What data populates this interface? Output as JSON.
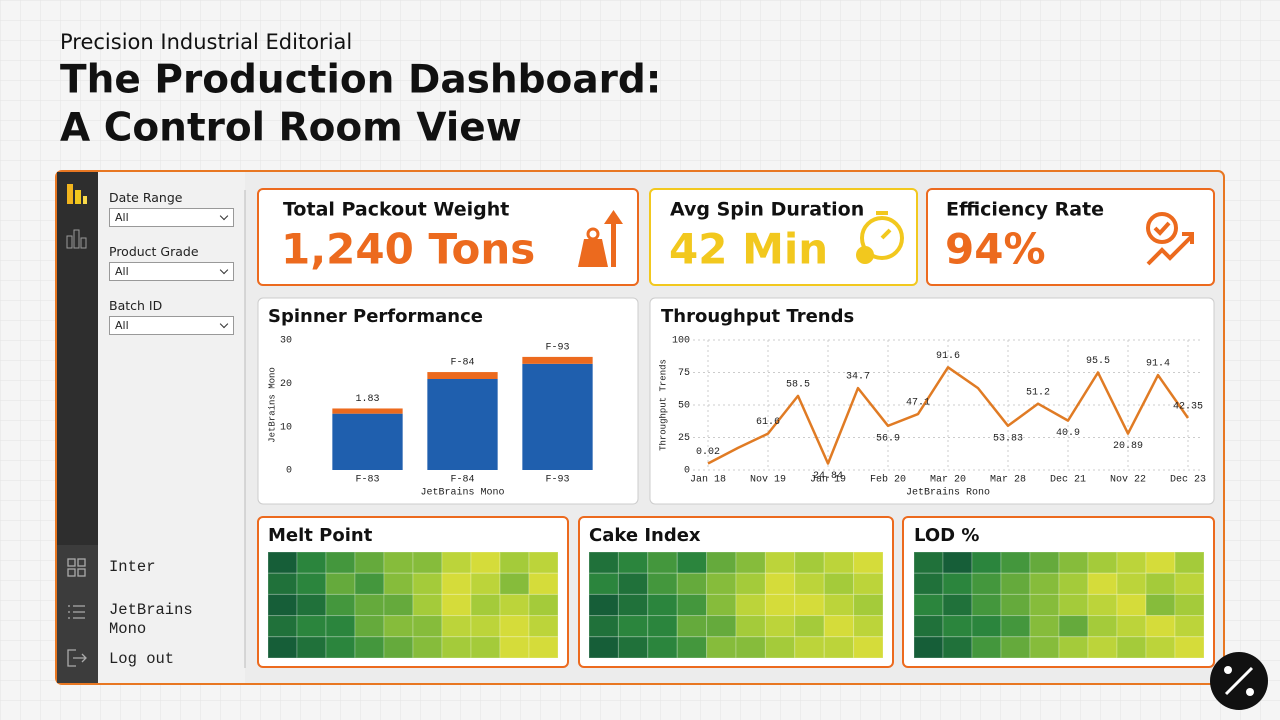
{
  "header": {
    "eyebrow": "Precision Industrial Editorial",
    "title": [
      "The Production Dashboard:",
      "A Control Room View"
    ]
  },
  "filters": [
    {
      "label": "Date Range",
      "value": "All"
    },
    {
      "label": "Product Grade",
      "value": "All"
    },
    {
      "label": "Batch ID",
      "value": "All"
    }
  ],
  "nav": [
    "Inter",
    "JetBrains Mono",
    "Log out"
  ],
  "kpis": [
    {
      "title": "Total Packout Weight",
      "value": "1,240 Tons",
      "color": "#ec6a1e"
    },
    {
      "title": "Avg Spin Duration",
      "value": "42 Min",
      "color": "#f2c81e"
    },
    {
      "title": "Efficiency Rate",
      "value": "94%",
      "color": "#ec6a1e"
    }
  ],
  "chart_data": [
    {
      "type": "bar",
      "title": "Spinner Performance",
      "stacked": true,
      "categories": [
        "F-83",
        "F-84",
        "F-93"
      ],
      "series": [
        {
          "color": "#1f5fae",
          "values": [
            13,
            21,
            24.5
          ]
        },
        {
          "color": "#ec6a1e",
          "values": [
            1.2,
            1.6,
            1.6
          ]
        }
      ],
      "annotations": [
        "1.83",
        "F-84",
        "F-93"
      ],
      "ylim": [
        0,
        30
      ],
      "yticks": [
        0,
        10,
        20,
        30
      ],
      "ylabel": "JetBrains Mono",
      "xlabel": "JetBrains Mono"
    },
    {
      "type": "line",
      "title": "Throughput Trends",
      "categories": [
        "Jan 18",
        null,
        "Nov 19",
        null,
        "Jan 19",
        null,
        "Feb 20",
        null,
        "Mar 20",
        null,
        "Mar 28",
        null,
        "Dec 21",
        null,
        "Nov 22",
        null,
        "Dec 23"
      ],
      "values": [
        5,
        17,
        28,
        57,
        5,
        63,
        34,
        43,
        79,
        63,
        34,
        51,
        38,
        75,
        28,
        73,
        40
      ],
      "annotations": [
        "0.02",
        null,
        "61.6",
        "58.5",
        "24.84",
        "34.7",
        "56.9",
        "47.1",
        "91.6",
        null,
        "53.83",
        "51.2",
        "40.9",
        "95.5",
        "20.89",
        "91.4",
        "42.35"
      ],
      "color": "#e07b24",
      "grid": true,
      "ylim": [
        0,
        100
      ],
      "yticks": [
        0,
        25,
        50,
        75,
        100
      ],
      "ylabel": "Throughput Trends",
      "xlabel": "JetBrains Rono"
    },
    {
      "type": "heatmap",
      "title": "Melt Point",
      "zlim": [
        0,
        10
      ],
      "colorscale": [
        "#0b4a35",
        "#2e8b3e",
        "#9cc83a",
        "#ede53a"
      ],
      "values": [
        [
          1,
          3,
          4,
          5,
          6,
          6,
          8,
          9,
          7,
          8
        ],
        [
          2,
          3,
          5,
          4,
          6,
          7,
          9,
          8,
          6,
          9
        ],
        [
          1,
          2,
          4,
          5,
          5,
          7,
          9,
          7,
          8,
          7
        ],
        [
          2,
          3,
          3,
          5,
          6,
          6,
          8,
          8,
          9,
          8
        ],
        [
          1,
          2,
          3,
          4,
          5,
          6,
          7,
          7,
          9,
          9
        ]
      ]
    },
    {
      "type": "heatmap",
      "title": "Cake Index",
      "zlim": [
        0,
        10
      ],
      "colorscale": [
        "#0b4a35",
        "#2e8b3e",
        "#9cc83a",
        "#ede53a"
      ],
      "values": [
        [
          2,
          3,
          4,
          3,
          5,
          6,
          8,
          7,
          8,
          9
        ],
        [
          3,
          2,
          4,
          5,
          6,
          7,
          9,
          8,
          7,
          8
        ],
        [
          1,
          2,
          3,
          4,
          6,
          8,
          9,
          9,
          8,
          7
        ],
        [
          2,
          3,
          3,
          5,
          5,
          7,
          8,
          7,
          9,
          8
        ],
        [
          1,
          2,
          3,
          4,
          6,
          6,
          7,
          8,
          8,
          9
        ]
      ]
    },
    {
      "type": "heatmap",
      "title": "LOD %",
      "zlim": [
        0,
        10
      ],
      "colorscale": [
        "#0b4a35",
        "#2e8b3e",
        "#9cc83a",
        "#ede53a"
      ],
      "values": [
        [
          2,
          1,
          3,
          4,
          5,
          6,
          7,
          8,
          9,
          7
        ],
        [
          2,
          3,
          4,
          5,
          6,
          7,
          9,
          8,
          7,
          8
        ],
        [
          3,
          2,
          4,
          5,
          6,
          7,
          8,
          9,
          6,
          7
        ],
        [
          2,
          3,
          3,
          4,
          6,
          5,
          7,
          8,
          9,
          8
        ],
        [
          1,
          2,
          4,
          5,
          6,
          7,
          8,
          7,
          8,
          9
        ]
      ]
    }
  ]
}
